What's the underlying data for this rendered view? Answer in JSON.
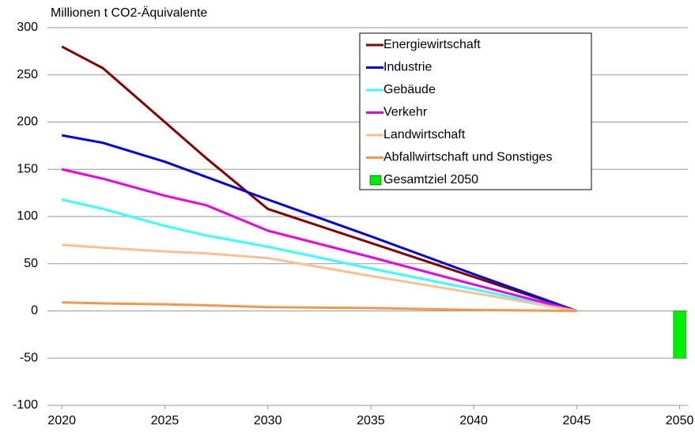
{
  "chart_data": {
    "type": "line",
    "y_label": "Millionen t CO2-Äquivalente",
    "x": [
      2020,
      2022,
      2025,
      2027,
      2030,
      2035,
      2040,
      2045
    ],
    "series": [
      {
        "name": "Energiewirtschaft",
        "color": "#8b0000",
        "values": [
          280,
          257,
          200,
          162,
          108,
          72,
          36,
          0
        ]
      },
      {
        "name": "Industrie",
        "color": "#0000ee",
        "values": [
          186,
          178,
          158,
          142,
          118,
          79,
          39,
          0
        ]
      },
      {
        "name": "Gebäude",
        "color": "#33ffff",
        "values": [
          118,
          108,
          90,
          80,
          68,
          45,
          23,
          0
        ]
      },
      {
        "name": "Verkehr",
        "color": "#ee00ee",
        "values": [
          150,
          140,
          122,
          112,
          85,
          57,
          28,
          0
        ]
      },
      {
        "name": "Landwirtschaft",
        "color": "#fac090",
        "values": [
          70,
          67,
          63,
          61,
          56,
          37,
          19,
          0
        ]
      },
      {
        "name": "Abfallwirtschaft und Sonstiges",
        "color": "#f79646",
        "values": [
          9,
          8,
          7,
          6,
          4,
          3,
          1,
          0
        ]
      },
      {
        "name": "Gesamtziel 2050",
        "color": "#00ee00",
        "type": "bar",
        "x": [
          2050
        ],
        "values": [
          -50
        ]
      }
    ],
    "xlim": [
      2019.3,
      2050.4
    ],
    "xticks": [
      2020,
      2025,
      2030,
      2035,
      2040,
      2045,
      2050
    ],
    "ylim": [
      -100,
      300
    ],
    "yticks": [
      -100,
      -50,
      0,
      50,
      100,
      150,
      200,
      250,
      300
    ],
    "grid": true
  }
}
